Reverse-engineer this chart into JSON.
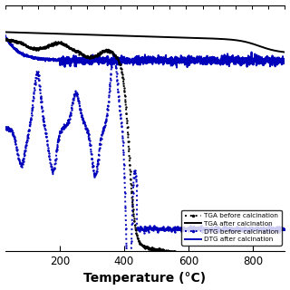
{
  "xlabel": "Temperature (°C)",
  "xlim": [
    30,
    900
  ],
  "xticks": [
    200,
    400,
    600,
    800
  ],
  "background_color": "#ffffff",
  "ylim": [
    -1.0,
    1.0
  ],
  "legend_entries": [
    {
      "label": "TGA before calcination",
      "color": "black",
      "linestyle": "dotted"
    },
    {
      "label": "TGA after calcination",
      "color": "black",
      "linestyle": "solid"
    },
    {
      "label": "DTG before calcination",
      "color": "#0000bb",
      "linestyle": "dotted"
    },
    {
      "label": "DTG after calcination",
      "color": "#0000bb",
      "linestyle": "solid"
    }
  ]
}
